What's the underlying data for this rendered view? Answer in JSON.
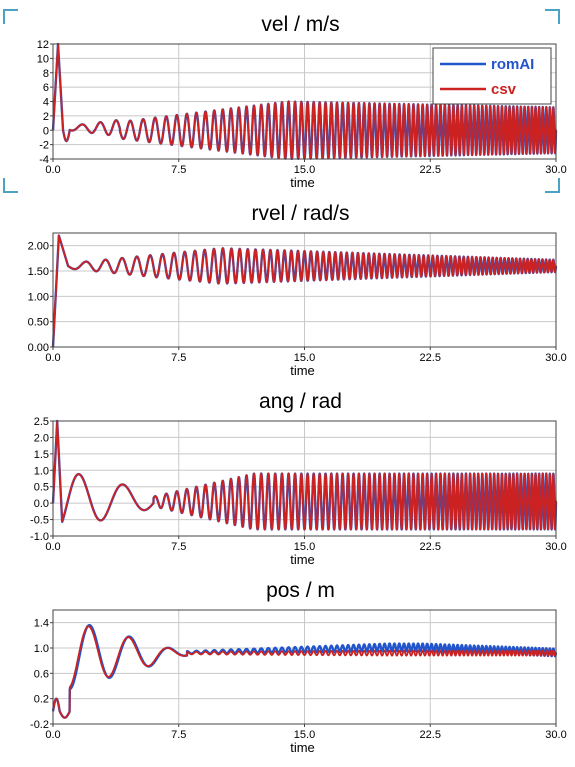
{
  "colors": {
    "romAI": "#2255cc",
    "csv": "#cc2222",
    "grid": "#c8c8c8",
    "corner": "#4aa3c4"
  },
  "legend": [
    {
      "name": "romAI",
      "color": "#2255cc"
    },
    {
      "name": "csv",
      "color": "#cc2222"
    }
  ],
  "chart_data": [
    {
      "type": "line",
      "title": "vel / m/s",
      "xlabel": "time",
      "xlim": [
        0,
        30
      ],
      "ylim": [
        -4,
        12
      ],
      "xticks": [
        0,
        7.5,
        15,
        22.5,
        30
      ],
      "xtick_labels": [
        "0.0",
        "7.5",
        "15.0",
        "22.5",
        "30.0"
      ],
      "yticks": [
        -4,
        -2,
        0,
        2,
        4,
        6,
        8,
        10,
        12
      ],
      "ytick_labels": [
        "-4",
        "-2",
        "0",
        "2",
        "4",
        "6",
        "8",
        "10",
        "12"
      ],
      "grid": true,
      "legend_position": "top-right",
      "series": [
        {
          "name": "romAI",
          "color": "#2255cc",
          "signal": "vel",
          "variant": 0
        },
        {
          "name": "csv",
          "color": "#cc2222",
          "signal": "vel",
          "variant": 1
        }
      ]
    },
    {
      "type": "line",
      "title": "rvel / rad/s",
      "xlabel": "time",
      "xlim": [
        0,
        30
      ],
      "ylim": [
        0,
        2.25
      ],
      "xticks": [
        0,
        7.5,
        15,
        22.5,
        30
      ],
      "xtick_labels": [
        "0.0",
        "7.5",
        "15.0",
        "22.5",
        "30.0"
      ],
      "yticks": [
        0,
        0.5,
        1.0,
        1.5,
        2.0
      ],
      "ytick_labels": [
        "0.00",
        "0.50",
        "1.00",
        "1.50",
        "2.00"
      ],
      "grid": true,
      "series": [
        {
          "name": "romAI",
          "color": "#2255cc",
          "signal": "rvel",
          "variant": 0
        },
        {
          "name": "csv",
          "color": "#cc2222",
          "signal": "rvel",
          "variant": 1
        }
      ]
    },
    {
      "type": "line",
      "title": "ang / rad",
      "xlabel": "time",
      "xlim": [
        0,
        30
      ],
      "ylim": [
        -1.0,
        2.5
      ],
      "xticks": [
        0,
        7.5,
        15,
        22.5,
        30
      ],
      "xtick_labels": [
        "0.0",
        "7.5",
        "15.0",
        "22.5",
        "30.0"
      ],
      "yticks": [
        -1.0,
        -0.5,
        0.0,
        0.5,
        1.0,
        1.5,
        2.0,
        2.5
      ],
      "ytick_labels": [
        "-1.0",
        "-0.5",
        "0.0",
        "0.5",
        "1.0",
        "1.5",
        "2.0",
        "2.5"
      ],
      "grid": true,
      "series": [
        {
          "name": "romAI",
          "color": "#2255cc",
          "signal": "ang",
          "variant": 0
        },
        {
          "name": "csv",
          "color": "#cc2222",
          "signal": "ang",
          "variant": 1
        }
      ]
    },
    {
      "type": "line",
      "title": "pos / m",
      "xlabel": "time",
      "xlim": [
        0,
        30
      ],
      "ylim": [
        -0.2,
        1.6
      ],
      "xticks": [
        0,
        7.5,
        15,
        22.5,
        30
      ],
      "xtick_labels": [
        "0.0",
        "7.5",
        "15.0",
        "22.5",
        "30.0"
      ],
      "yticks": [
        -0.2,
        0.2,
        0.6,
        1.0,
        1.4
      ],
      "ytick_labels": [
        "-0.2",
        "0.2",
        "0.6",
        "1.0",
        "1.4"
      ],
      "grid": true,
      "series": [
        {
          "name": "romAI",
          "color": "#2255cc",
          "signal": "pos",
          "variant": 0
        },
        {
          "name": "csv",
          "color": "#cc2222",
          "signal": "pos",
          "variant": 1
        }
      ]
    }
  ]
}
